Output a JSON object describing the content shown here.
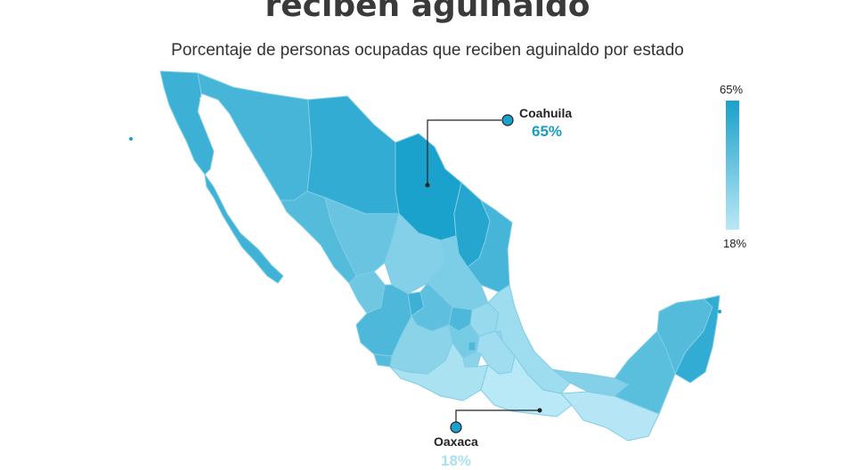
{
  "header": {
    "title": "reciben aguinaldo",
    "subtitle": "Porcentaje de personas ocupadas que reciben aguinaldo por estado"
  },
  "legend": {
    "max_label": "65%",
    "min_label": "18%",
    "max_color": "#1aa1cc",
    "min_color": "#b9e8f6"
  },
  "callouts": [
    {
      "state": "Coahuila",
      "value": "65%",
      "color": "#1a9cc4"
    },
    {
      "state": "Oaxaca",
      "value": "18%",
      "color": "#a9e1f2"
    }
  ],
  "map": {
    "states": [
      {
        "name": "Baja California",
        "pct": 55
      },
      {
        "name": "Baja California Sur",
        "pct": 54
      },
      {
        "name": "Sonora",
        "pct": 52
      },
      {
        "name": "Chihuahua",
        "pct": 58
      },
      {
        "name": "Coahuila",
        "pct": 65
      },
      {
        "name": "Nuevo León",
        "pct": 62
      },
      {
        "name": "Tamaulipas",
        "pct": 52
      },
      {
        "name": "Sinaloa",
        "pct": 48
      },
      {
        "name": "Durango",
        "pct": 42
      },
      {
        "name": "Zacatecas",
        "pct": 34
      },
      {
        "name": "San Luis Potosí",
        "pct": 36
      },
      {
        "name": "Nayarit",
        "pct": 40
      },
      {
        "name": "Jalisco",
        "pct": 50
      },
      {
        "name": "Aguascalientes",
        "pct": 55
      },
      {
        "name": "Guanajuato",
        "pct": 45
      },
      {
        "name": "Querétaro",
        "pct": 50
      },
      {
        "name": "Hidalgo",
        "pct": 28
      },
      {
        "name": "Veracruz",
        "pct": 26
      },
      {
        "name": "Colima",
        "pct": 48
      },
      {
        "name": "Michoacán",
        "pct": 32
      },
      {
        "name": "Estado de México",
        "pct": 38
      },
      {
        "name": "Ciudad de México",
        "pct": 50
      },
      {
        "name": "Tlaxcala",
        "pct": 30
      },
      {
        "name": "Puebla",
        "pct": 25
      },
      {
        "name": "Morelos",
        "pct": 32
      },
      {
        "name": "Guerrero",
        "pct": 22
      },
      {
        "name": "Oaxaca",
        "pct": 18
      },
      {
        "name": "Chiapas",
        "pct": 19
      },
      {
        "name": "Tabasco",
        "pct": 34
      },
      {
        "name": "Campeche",
        "pct": 46
      },
      {
        "name": "Yucatán",
        "pct": 48
      },
      {
        "name": "Quintana Roo",
        "pct": 58
      }
    ]
  }
}
